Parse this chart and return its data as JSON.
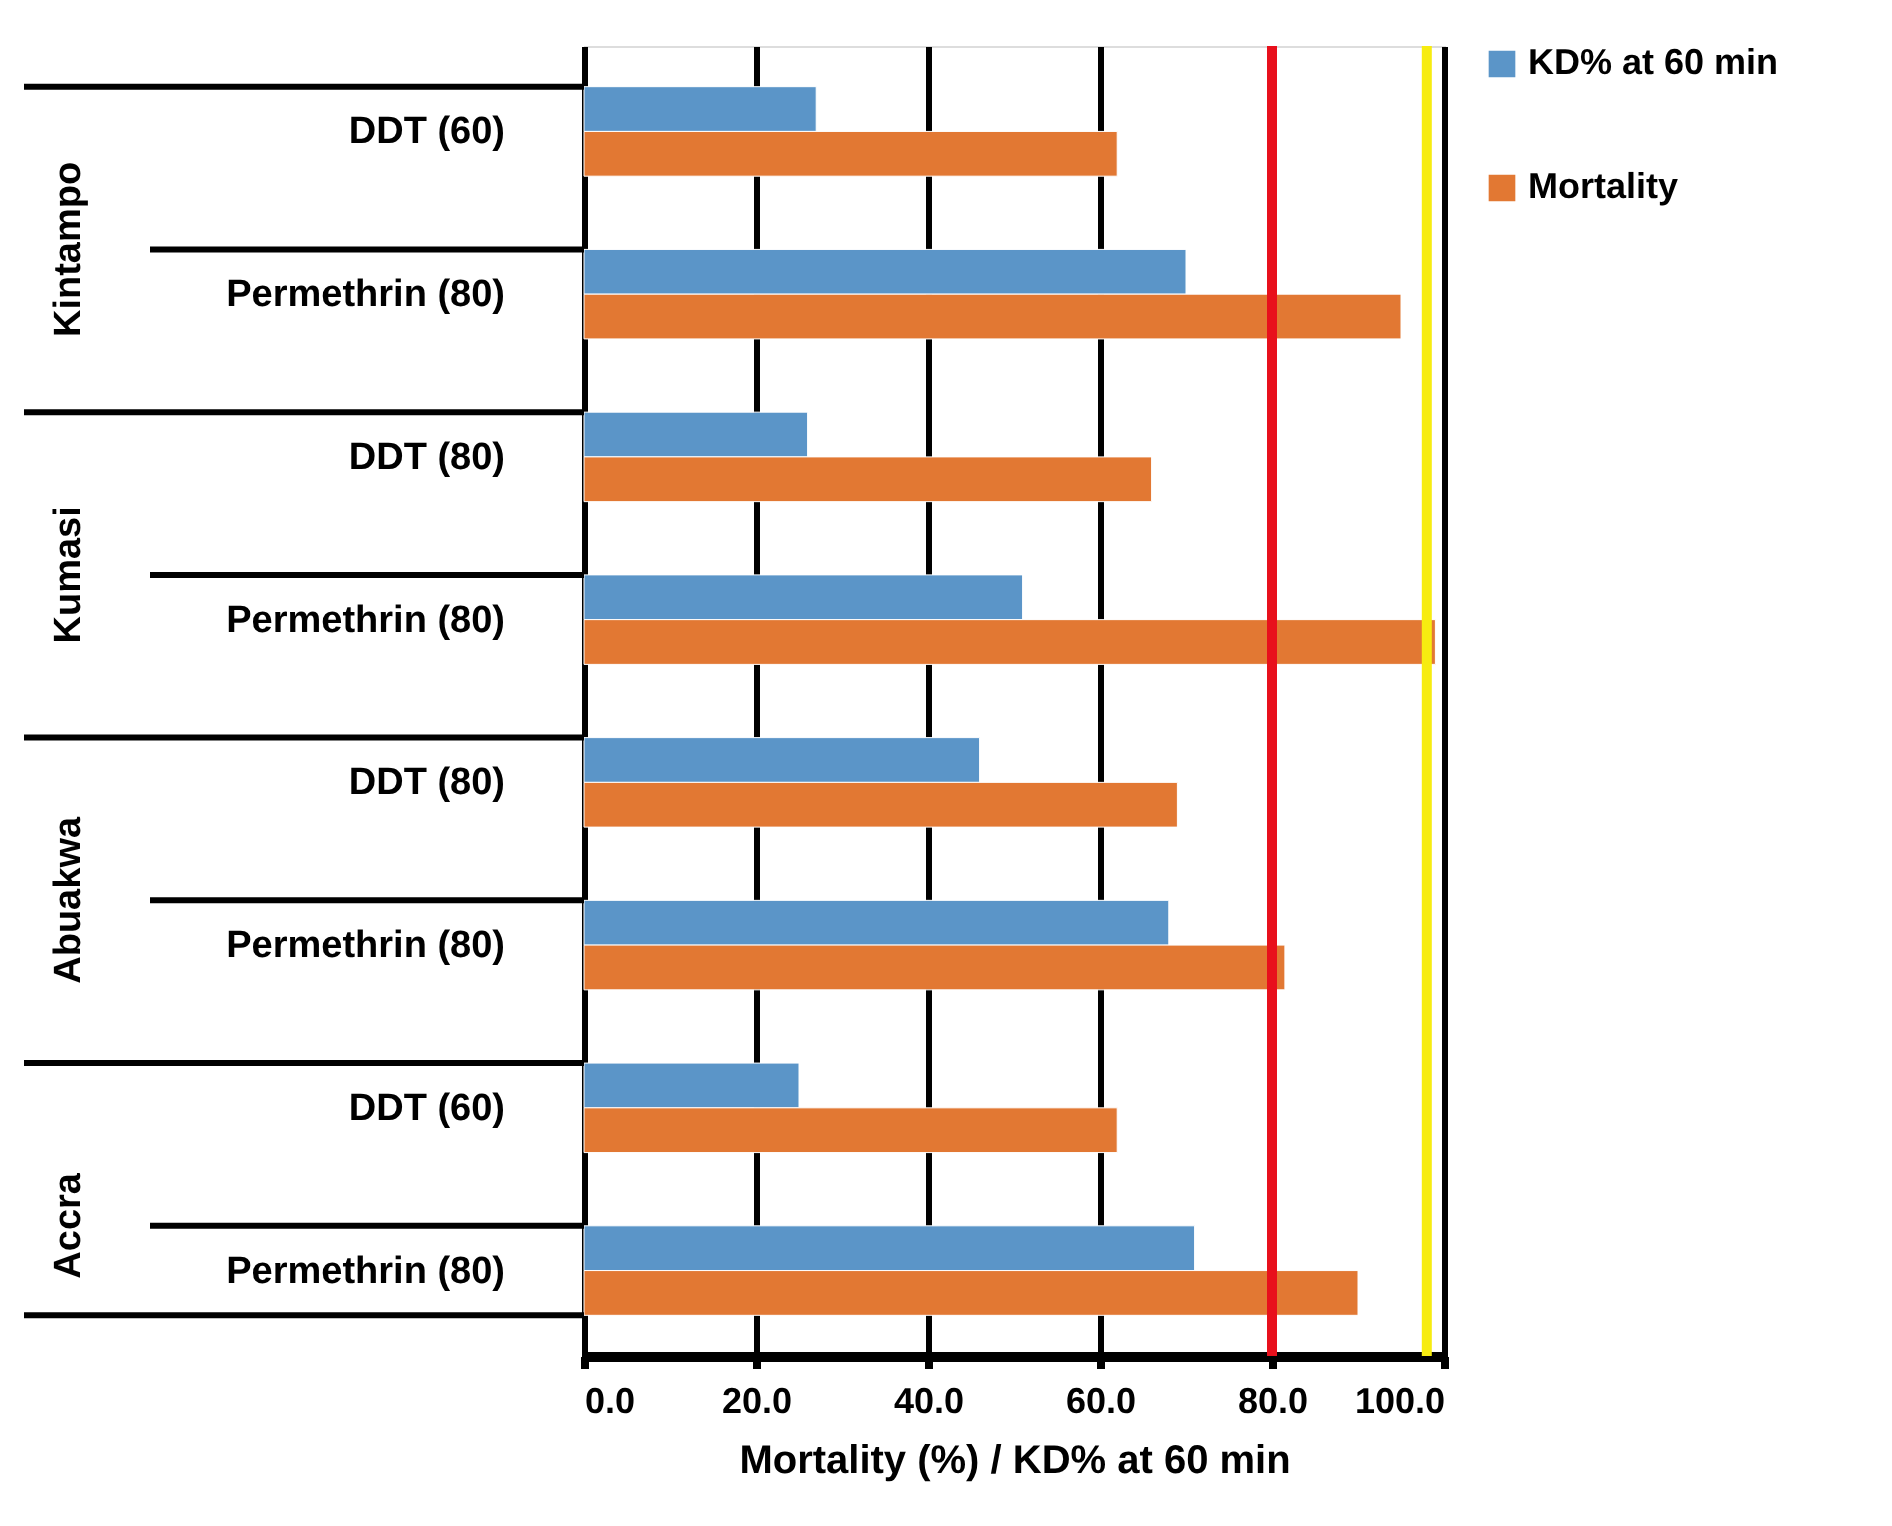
{
  "chart_data": {
    "type": "bar",
    "orientation": "horizontal",
    "categories": [
      "DDT (60)",
      "Permethrin (80)",
      "DDT (80)",
      "Permethrin (80)",
      "DDT (80)",
      "Permethrin (80)",
      "DDT (60)",
      "Permethrin (80)"
    ],
    "series": [
      {
        "name": "KD% at 60 min",
        "color": "#5b95c8",
        "values": [
          27,
          70,
          26,
          51,
          46,
          68,
          25,
          71
        ]
      },
      {
        "name": "Mortality",
        "color": "#e27833",
        "values": [
          62,
          95,
          66,
          99,
          69,
          81.5,
          62,
          90
        ]
      }
    ],
    "annotations": [
      "Kintampo",
      "Kumasi",
      "Abuakwa",
      "Accra"
    ],
    "xlabel": "Mortality (%)  / KD% at 60 min",
    "xlim": [
      0,
      100
    ],
    "xticks": [
      {
        "value": 0,
        "label": "0.0"
      },
      {
        "value": 20,
        "label": "20.0"
      },
      {
        "value": 40,
        "label": "40.0"
      },
      {
        "value": 60,
        "label": "60.0"
      },
      {
        "value": 80,
        "label": "80.0"
      },
      {
        "value": 100,
        "label": "100.0"
      }
    ],
    "ref_lines": [
      {
        "axis": "x",
        "value": 80,
        "color": "#e8101c"
      },
      {
        "axis": "x",
        "value": 98,
        "color": "#f7ec10"
      }
    ],
    "grid": "x",
    "legend": "top right"
  }
}
